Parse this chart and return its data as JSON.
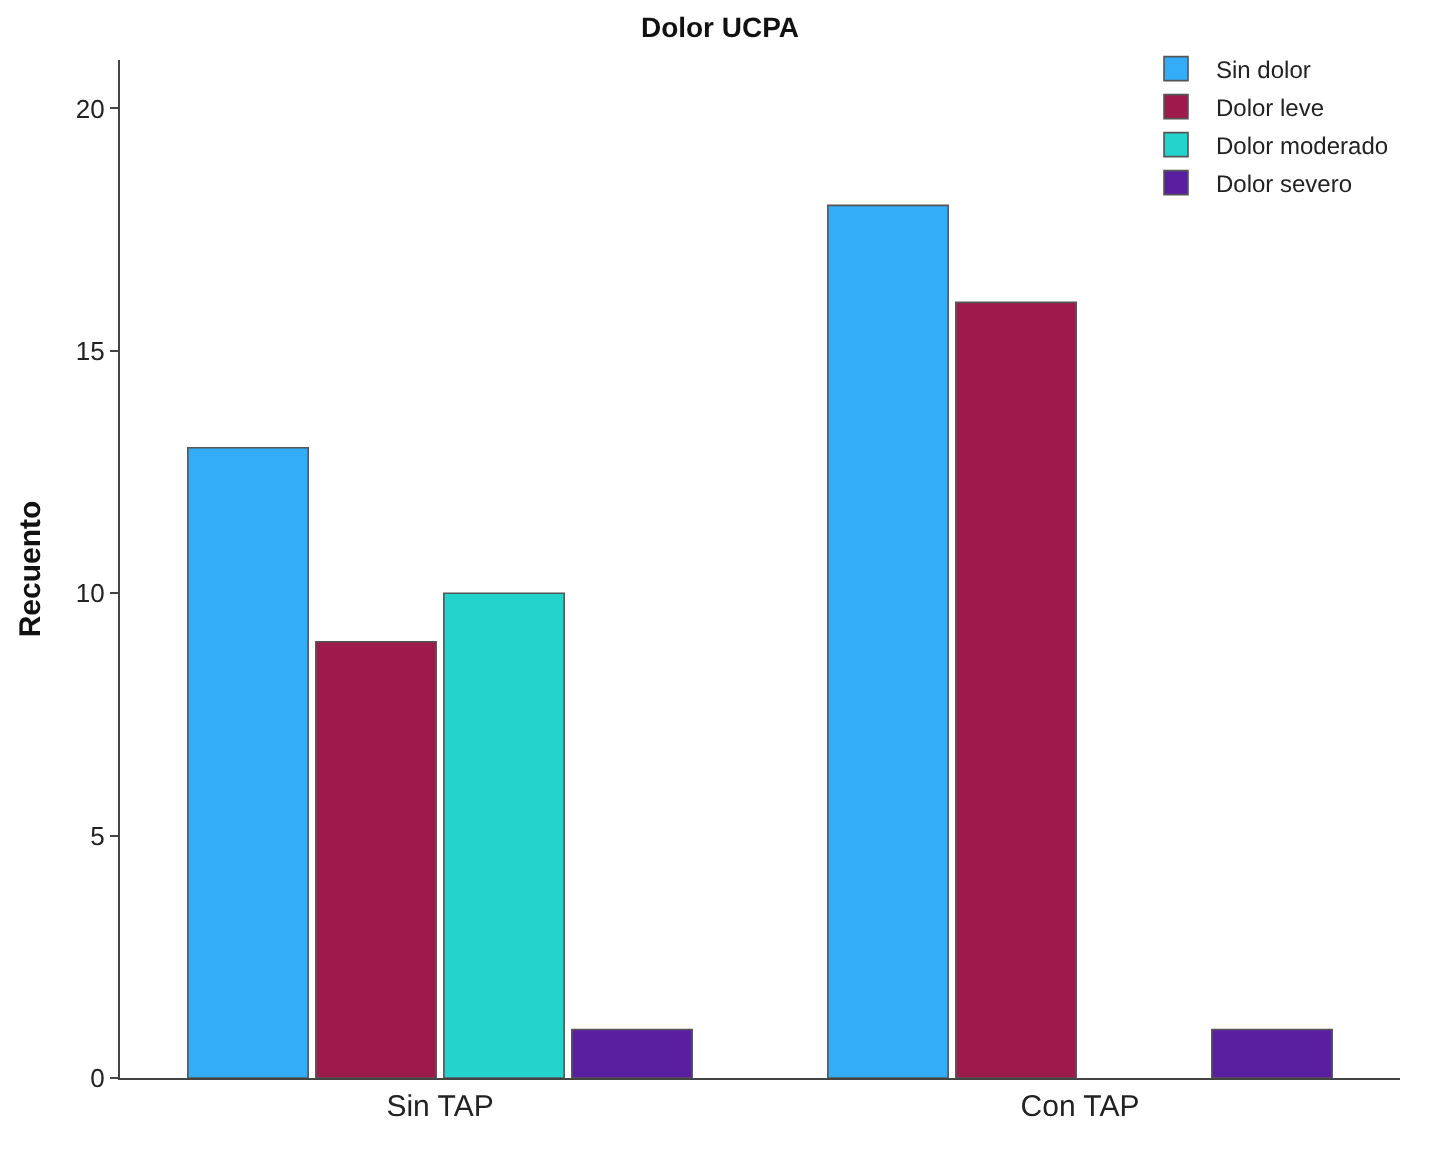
{
  "chart_data": {
    "type": "bar",
    "title": "Dolor UCPA",
    "ylabel": "Recuento",
    "categories": [
      "Sin TAP",
      "Con TAP"
    ],
    "series": [
      {
        "name": "Sin dolor",
        "color": "#33adf7",
        "values": [
          13,
          18
        ]
      },
      {
        "name": "Dolor leve",
        "color": "#9e1a4c",
        "values": [
          9,
          16
        ]
      },
      {
        "name": "Dolor moderado",
        "color": "#24d3cc",
        "values": [
          10,
          null
        ]
      },
      {
        "name": "Dolor severo",
        "color": "#5a1fa0",
        "values": [
          1,
          1
        ]
      }
    ],
    "ylim": [
      0,
      21
    ],
    "yticks": [
      0,
      5,
      10,
      15,
      20
    ],
    "grid": false,
    "legend": "top right"
  }
}
